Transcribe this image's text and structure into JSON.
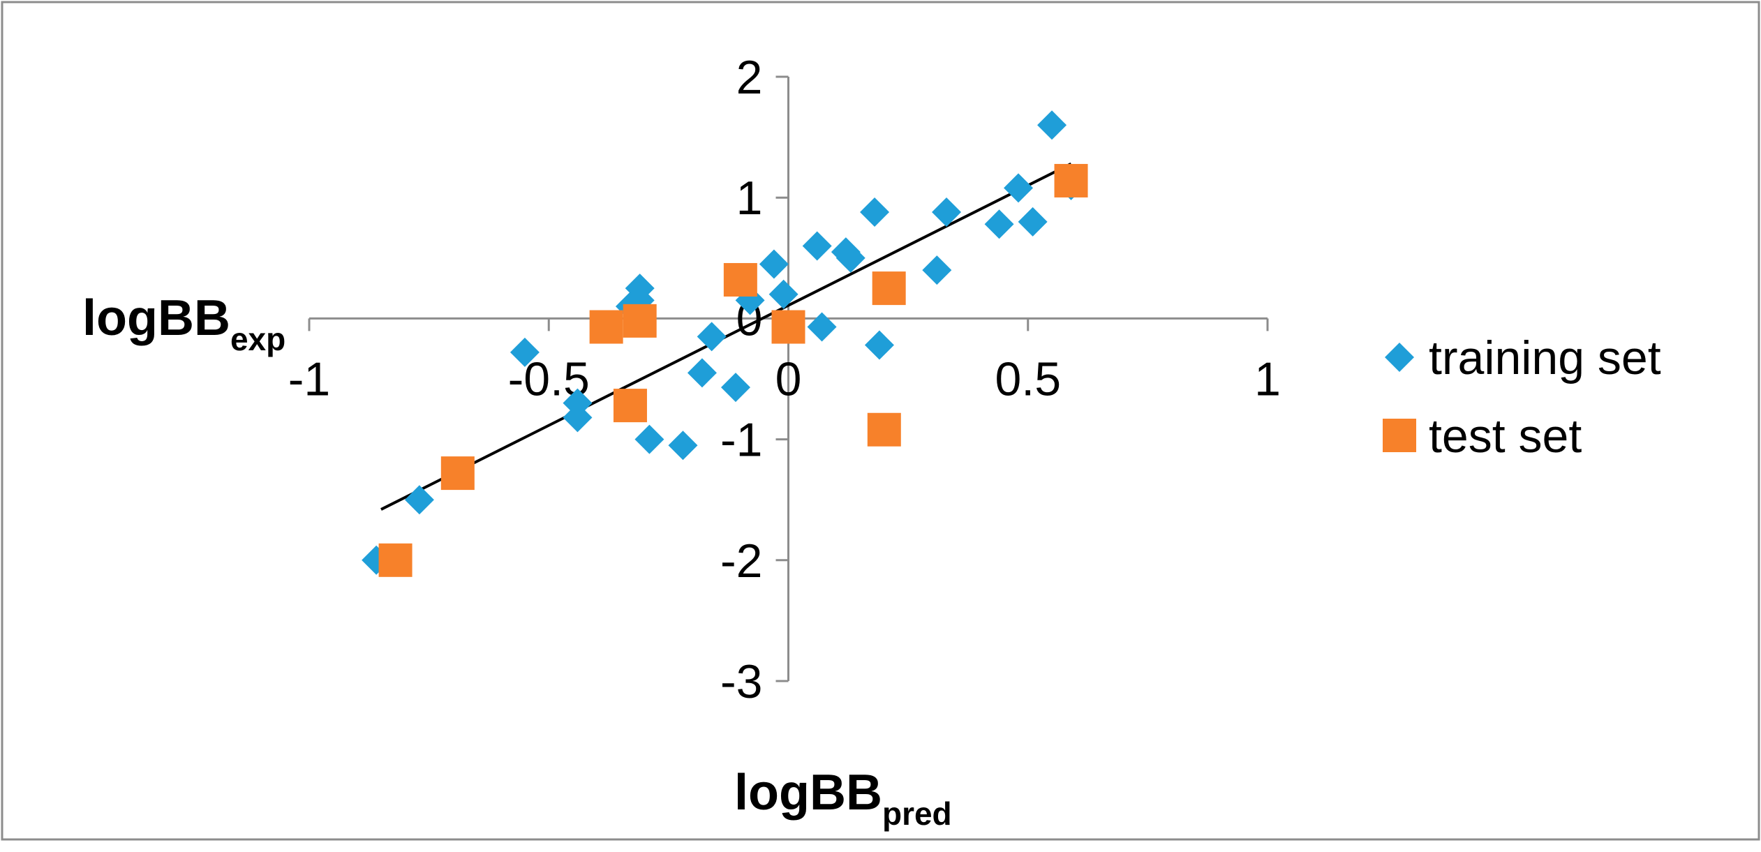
{
  "chart_data": {
    "type": "scatter",
    "xlabel": "logBB",
    "xlabel_sub": "pred",
    "ylabel": "logBB",
    "ylabel_sub": "exp",
    "xlim": [
      -1,
      1
    ],
    "ylim": [
      -3,
      2
    ],
    "x_ticks": [
      -1,
      -0.5,
      0,
      0.5,
      1
    ],
    "x_tick_labels": [
      "-1",
      "-0.5",
      "0",
      "0.5",
      "1"
    ],
    "y_ticks": [
      -3,
      -2,
      -1,
      0,
      1,
      2
    ],
    "y_tick_labels": [
      "-3",
      "-2",
      "-1",
      "0",
      "1",
      "2"
    ],
    "grid": false,
    "legend_position": "right",
    "series": [
      {
        "name": "training set",
        "marker": "diamond",
        "color": "#1F9ED8",
        "points": [
          [
            -0.86,
            -2.0
          ],
          [
            -0.77,
            -1.5
          ],
          [
            -0.44,
            -0.82
          ],
          [
            -0.44,
            -0.7
          ],
          [
            -0.55,
            -0.28
          ],
          [
            -0.33,
            0.1
          ],
          [
            -0.31,
            0.25
          ],
          [
            -0.31,
            0.15
          ],
          [
            -0.29,
            -1.0
          ],
          [
            -0.22,
            -1.05
          ],
          [
            -0.18,
            -0.45
          ],
          [
            -0.16,
            -0.15
          ],
          [
            -0.11,
            -0.57
          ],
          [
            -0.08,
            0.15
          ],
          [
            -0.03,
            0.45
          ],
          [
            -0.01,
            0.2
          ],
          [
            0.06,
            0.6
          ],
          [
            0.07,
            -0.07
          ],
          [
            0.12,
            0.55
          ],
          [
            0.13,
            0.5
          ],
          [
            0.18,
            0.88
          ],
          [
            0.19,
            -0.22
          ],
          [
            0.31,
            0.4
          ],
          [
            0.33,
            0.88
          ],
          [
            0.44,
            0.78
          ],
          [
            0.48,
            1.08
          ],
          [
            0.51,
            0.8
          ],
          [
            0.55,
            1.6
          ],
          [
            0.59,
            1.1
          ]
        ]
      },
      {
        "name": "test set",
        "marker": "square",
        "color": "#F7812A",
        "points": [
          [
            -0.82,
            -2.0
          ],
          [
            -0.69,
            -1.28
          ],
          [
            -0.38,
            -0.07
          ],
          [
            -0.33,
            -0.72
          ],
          [
            -0.31,
            -0.02
          ],
          [
            -0.1,
            0.32
          ],
          [
            0.0,
            -0.07
          ],
          [
            0.2,
            -0.92
          ],
          [
            0.21,
            0.25
          ],
          [
            0.59,
            1.14
          ]
        ]
      }
    ],
    "trendline": {
      "x": [
        -0.85,
        0.59
      ],
      "y": [
        -1.58,
        1.28
      ],
      "color": "#000000"
    }
  }
}
